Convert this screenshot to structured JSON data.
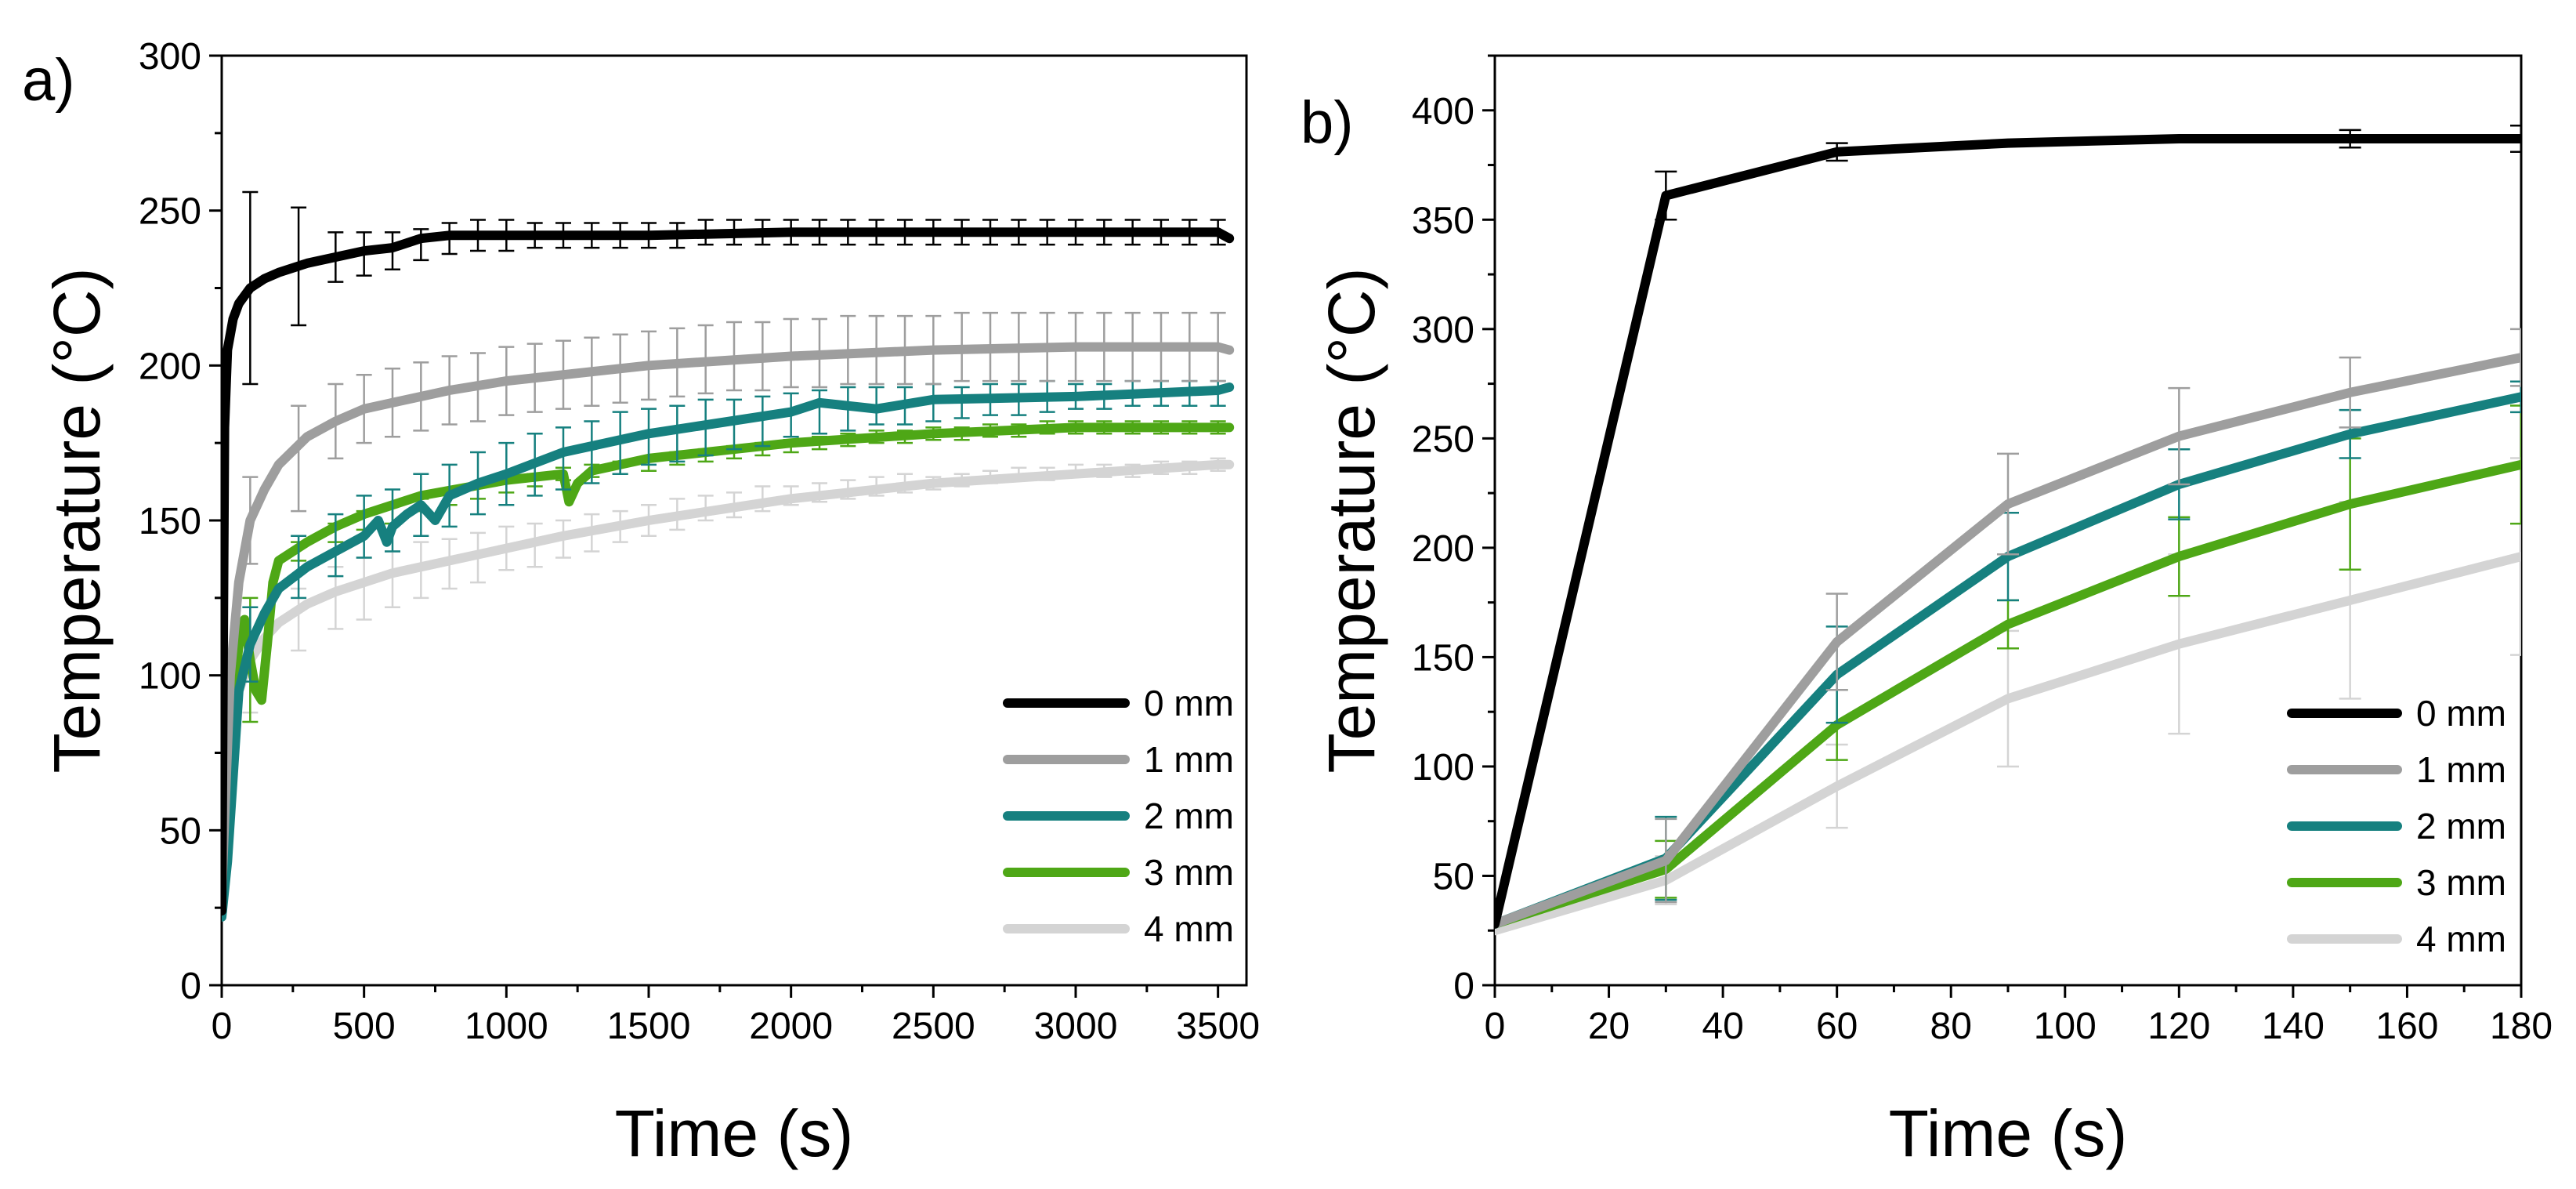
{
  "chart_data": [
    {
      "panel_label": "a)",
      "type": "line",
      "title": "",
      "xlabel": "Time (s)",
      "ylabel": "Temperature (°C)",
      "xlim": [
        0,
        3600
      ],
      "ylim": [
        0,
        300
      ],
      "xticks": [
        0,
        500,
        1000,
        1500,
        2000,
        2500,
        3000,
        3500
      ],
      "yticks": [
        0,
        50,
        100,
        150,
        200,
        250,
        300
      ],
      "grid": false,
      "legend_position": "bottom-right",
      "series": [
        {
          "name": "0 mm",
          "color": "#000000",
          "x": [
            0,
            10,
            20,
            40,
            60,
            100,
            150,
            200,
            300,
            400,
            500,
            600,
            700,
            800,
            900,
            1000,
            1200,
            1500,
            2000,
            2500,
            3000,
            3500,
            3540
          ],
          "y": [
            24,
            180,
            205,
            215,
            220,
            225,
            228,
            230,
            233,
            235,
            237,
            238,
            241,
            242,
            242,
            242,
            242,
            242,
            243,
            243,
            243,
            243,
            241
          ],
          "err_x": [
            100,
            270,
            400,
            500,
            600,
            700,
            800,
            900,
            1000,
            1100,
            1200,
            1300,
            1400,
            1500,
            1600,
            1700,
            1800,
            1900,
            2000,
            2100,
            2200,
            2300,
            2400,
            2500,
            2600,
            2700,
            2800,
            2900,
            3000,
            3100,
            3200,
            3300,
            3400,
            3500
          ],
          "err_y": [
            225,
            232,
            235,
            236,
            237,
            239,
            241,
            242,
            242,
            242,
            242,
            242,
            242,
            242,
            242,
            243,
            243,
            243,
            243,
            243,
            243,
            243,
            243,
            243,
            243,
            243,
            243,
            243,
            243,
            243,
            243,
            243,
            243,
            243
          ],
          "err_e": [
            31,
            19,
            8,
            7,
            6,
            5,
            5,
            5,
            5,
            4,
            4,
            4,
            4,
            4,
            4,
            4,
            4,
            4,
            4,
            4,
            4,
            4,
            4,
            4,
            4,
            4,
            4,
            4,
            4,
            4,
            4,
            4,
            4,
            4
          ]
        },
        {
          "name": "1 mm",
          "color": "#9e9e9e",
          "x": [
            0,
            30,
            60,
            100,
            150,
            200,
            300,
            400,
            500,
            600,
            800,
            1000,
            1200,
            1500,
            2000,
            2500,
            3000,
            3500,
            3540
          ],
          "y": [
            30,
            100,
            130,
            150,
            160,
            168,
            177,
            182,
            186,
            188,
            192,
            195,
            197,
            200,
            203,
            205,
            206,
            206,
            205
          ],
          "err_x": [
            100,
            270,
            400,
            500,
            600,
            700,
            800,
            900,
            1000,
            1100,
            1200,
            1300,
            1400,
            1500,
            1600,
            1700,
            1800,
            1900,
            2000,
            2100,
            2200,
            2300,
            2400,
            2500,
            2600,
            2700,
            2800,
            2900,
            3000,
            3100,
            3200,
            3300,
            3400,
            3500
          ],
          "err_y": [
            150,
            170,
            182,
            186,
            188,
            190,
            192,
            193,
            195,
            196,
            197,
            198,
            199,
            200,
            201,
            202,
            203,
            203,
            204,
            204,
            205,
            205,
            205,
            205,
            206,
            206,
            206,
            206,
            206,
            206,
            206,
            206,
            206,
            206
          ],
          "err_e": [
            14,
            17,
            12,
            11,
            11,
            11,
            11,
            11,
            11,
            11,
            11,
            11,
            11,
            11,
            11,
            11,
            11,
            11,
            11,
            11,
            11,
            11,
            11,
            11,
            11,
            11,
            11,
            11,
            11,
            11,
            11,
            11,
            11,
            11
          ]
        },
        {
          "name": "2 mm",
          "color": "#16807f",
          "x": [
            0,
            20,
            60,
            100,
            150,
            200,
            300,
            400,
            500,
            550,
            580,
            600,
            650,
            700,
            750,
            800,
            900,
            1000,
            1200,
            1500,
            2000,
            2100,
            2300,
            2500,
            3000,
            3500,
            3540
          ],
          "y": [
            22,
            40,
            95,
            110,
            120,
            128,
            135,
            140,
            145,
            150,
            143,
            148,
            152,
            155,
            150,
            158,
            162,
            165,
            172,
            178,
            185,
            188,
            186,
            189,
            190,
            192,
            193
          ],
          "err_x": [
            100,
            270,
            400,
            500,
            600,
            700,
            800,
            900,
            1000,
            1100,
            1200,
            1300,
            1400,
            1500,
            1600,
            1700,
            1800,
            1900,
            2000,
            2100,
            2200,
            2300,
            2400,
            2500,
            2600,
            2700,
            2800,
            2900,
            3000,
            3100,
            3200,
            3300,
            3400,
            3500
          ],
          "err_y": [
            110,
            135,
            142,
            148,
            150,
            155,
            158,
            162,
            165,
            168,
            170,
            172,
            175,
            177,
            178,
            180,
            181,
            182,
            184,
            185,
            186,
            187,
            187,
            188,
            188,
            189,
            189,
            190,
            190,
            190,
            191,
            191,
            191,
            191
          ],
          "err_e": [
            12,
            10,
            10,
            10,
            10,
            10,
            10,
            10,
            10,
            10,
            10,
            10,
            10,
            9,
            9,
            9,
            8,
            8,
            7,
            7,
            7,
            6,
            6,
            6,
            5,
            5,
            5,
            5,
            4,
            4,
            4,
            4,
            4,
            4
          ]
        },
        {
          "name": "3 mm",
          "color": "#4ea716",
          "x": [
            0,
            30,
            60,
            80,
            100,
            120,
            140,
            160,
            180,
            200,
            300,
            400,
            500,
            700,
            1000,
            1200,
            1220,
            1250,
            1300,
            1500,
            2000,
            2500,
            3000,
            3500,
            3540
          ],
          "y": [
            40,
            80,
            110,
            118,
            105,
            95,
            92,
            110,
            130,
            137,
            143,
            148,
            152,
            158,
            163,
            165,
            156,
            162,
            166,
            170,
            175,
            178,
            180,
            180,
            180
          ],
          "err_x": [
            100,
            270,
            400,
            500,
            600,
            700,
            800,
            900,
            1000,
            1100,
            1200,
            1300,
            1400,
            1500,
            1600,
            1700,
            1800,
            1900,
            2000,
            2100,
            2200,
            2300,
            2400,
            2500,
            2600,
            2700,
            2800,
            2900,
            3000,
            3100,
            3200,
            3300,
            3400,
            3500
          ],
          "err_y": [
            105,
            140,
            146,
            150,
            152,
            155,
            157,
            159,
            161,
            163,
            165,
            166,
            167,
            168,
            170,
            171,
            172,
            173,
            174,
            175,
            176,
            177,
            177,
            178,
            178,
            179,
            179,
            180,
            180,
            180,
            180,
            180,
            180,
            180
          ],
          "err_e": [
            20,
            3,
            3,
            3,
            3,
            2,
            2,
            2,
            2,
            2,
            2,
            2,
            2,
            2,
            2,
            2,
            2,
            2,
            2,
            2,
            2,
            2,
            2,
            2,
            2,
            2,
            2,
            2,
            2,
            2,
            2,
            2,
            2,
            2
          ]
        },
        {
          "name": "4 mm",
          "color": "#d4d4d4",
          "x": [
            0,
            30,
            60,
            100,
            150,
            200,
            300,
            400,
            500,
            600,
            800,
            1000,
            1200,
            1500,
            2000,
            2500,
            3000,
            3500,
            3540
          ],
          "y": [
            30,
            70,
            95,
            105,
            112,
            117,
            123,
            127,
            130,
            133,
            137,
            141,
            145,
            150,
            157,
            162,
            165,
            168,
            168
          ],
          "err_x": [
            100,
            270,
            400,
            500,
            600,
            700,
            800,
            900,
            1000,
            1100,
            1200,
            1300,
            1400,
            1500,
            1600,
            1700,
            1800,
            1900,
            2000,
            2100,
            2200,
            2300,
            2400,
            2500,
            2600,
            2700,
            2800,
            2900,
            3000,
            3100,
            3200,
            3300,
            3400,
            3500
          ],
          "err_y": [
            100,
            118,
            125,
            128,
            131,
            134,
            136,
            138,
            141,
            142,
            144,
            146,
            148,
            150,
            152,
            154,
            155,
            157,
            158,
            159,
            160,
            161,
            162,
            162,
            163,
            164,
            165,
            165,
            166,
            166,
            166,
            167,
            167,
            168
          ],
          "err_e": [
            12,
            10,
            10,
            10,
            9,
            9,
            8,
            8,
            7,
            7,
            6,
            6,
            5,
            5,
            5,
            4,
            4,
            4,
            3,
            3,
            3,
            3,
            3,
            2,
            2,
            2,
            2,
            2,
            2,
            2,
            2,
            2,
            2,
            2
          ]
        }
      ]
    },
    {
      "panel_label": "b)",
      "type": "line",
      "title": "",
      "xlabel": "Time (s)",
      "ylabel": "Temperature (°C)",
      "xlim": [
        0,
        180
      ],
      "ylim": [
        0,
        425
      ],
      "xticks": [
        0,
        20,
        40,
        60,
        80,
        100,
        120,
        140,
        160,
        180
      ],
      "yticks": [
        0,
        50,
        100,
        150,
        200,
        250,
        300,
        350,
        400
      ],
      "grid": false,
      "legend_position": "bottom-right",
      "series": [
        {
          "name": "0 mm",
          "color": "#000000",
          "x": [
            0,
            30,
            60,
            90,
            120,
            150,
            180
          ],
          "y": [
            28,
            361,
            381,
            385,
            387,
            387,
            387
          ],
          "err": [
            0,
            11,
            4,
            1,
            1,
            4,
            6
          ]
        },
        {
          "name": "1 mm",
          "color": "#9e9e9e",
          "x": [
            0,
            30,
            60,
            90,
            120,
            150,
            180
          ],
          "y": [
            28,
            57,
            157,
            220,
            251,
            271,
            287
          ],
          "err": [
            0,
            19,
            22,
            23,
            22,
            16,
            13
          ]
        },
        {
          "name": "2 mm",
          "color": "#16807f",
          "x": [
            0,
            30,
            60,
            90,
            120,
            150,
            180
          ],
          "y": [
            28,
            58,
            142,
            196,
            229,
            252,
            269
          ],
          "err": [
            0,
            19,
            22,
            20,
            16,
            11,
            7
          ]
        },
        {
          "name": "3 mm",
          "color": "#4ea716",
          "x": [
            0,
            30,
            60,
            90,
            120,
            150,
            180
          ],
          "y": [
            28,
            53,
            119,
            165,
            196,
            220,
            238
          ],
          "err": [
            0,
            13,
            16,
            11,
            18,
            30,
            27
          ]
        },
        {
          "name": "4 mm",
          "color": "#d4d4d4",
          "x": [
            0,
            30,
            60,
            90,
            120,
            150,
            180
          ],
          "y": [
            25,
            48,
            91,
            131,
            156,
            176,
            196
          ],
          "err": [
            0,
            11,
            19,
            31,
            41,
            45,
            45
          ]
        }
      ]
    }
  ]
}
